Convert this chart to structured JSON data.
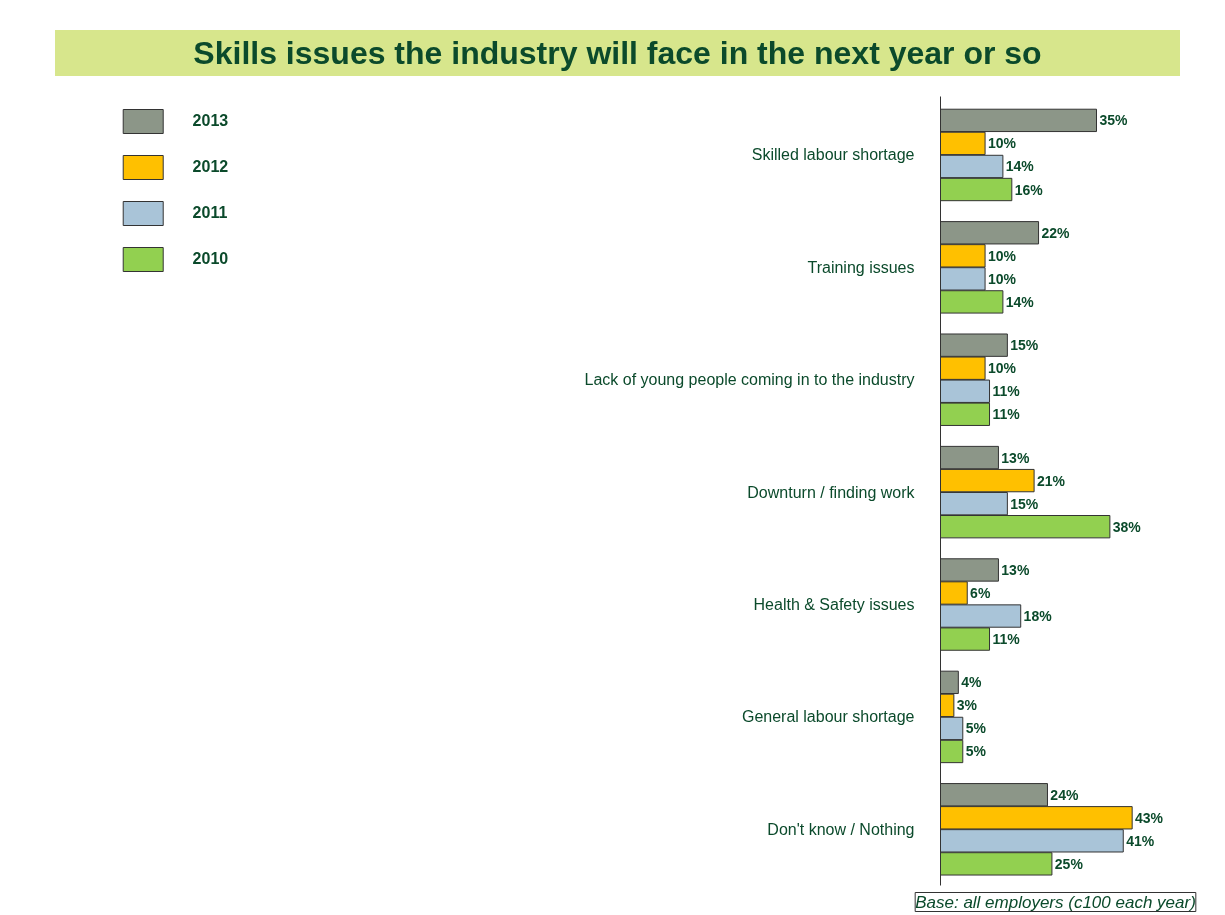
{
  "chart_data": {
    "type": "bar",
    "orientation": "horizontal",
    "title": "Skills issues the industry will face in the next year or so",
    "categories": [
      "Skilled labour shortage",
      "Training issues",
      "Lack of young people coming in to the industry",
      "Downturn / finding work",
      "Health & Safety issues",
      "General labour shortage",
      "Don't know / Nothing"
    ],
    "series": [
      {
        "name": "2013",
        "color": "#8c9688",
        "values": [
          35,
          22,
          15,
          13,
          13,
          4,
          24
        ],
        "value_labels": [
          "35%",
          "22%",
          "15%",
          "13%",
          "13%",
          "4%",
          "24%"
        ]
      },
      {
        "name": "2012",
        "color": "#ffc000",
        "values": [
          10,
          10,
          10,
          21,
          6,
          3,
          43
        ],
        "value_labels": [
          "10%",
          "10%",
          "10%",
          "21%",
          "6%",
          "3%",
          "43%"
        ]
      },
      {
        "name": "2011",
        "color": "#a9c4d8",
        "values": [
          14,
          10,
          11,
          15,
          18,
          5,
          41
        ],
        "value_labels": [
          "14%",
          "10%",
          "11%",
          "15%",
          "18%",
          "5%",
          "41%"
        ]
      },
      {
        "name": "2010",
        "color": "#92d050",
        "values": [
          16,
          14,
          11,
          38,
          11,
          5,
          25
        ],
        "value_labels": [
          "16%",
          "14%",
          "11%",
          "38%",
          "11%",
          "5%",
          "25%"
        ]
      }
    ],
    "legend": "top left",
    "grid": false,
    "annotations": [
      "Base: all employers (c100 each year)"
    ]
  }
}
